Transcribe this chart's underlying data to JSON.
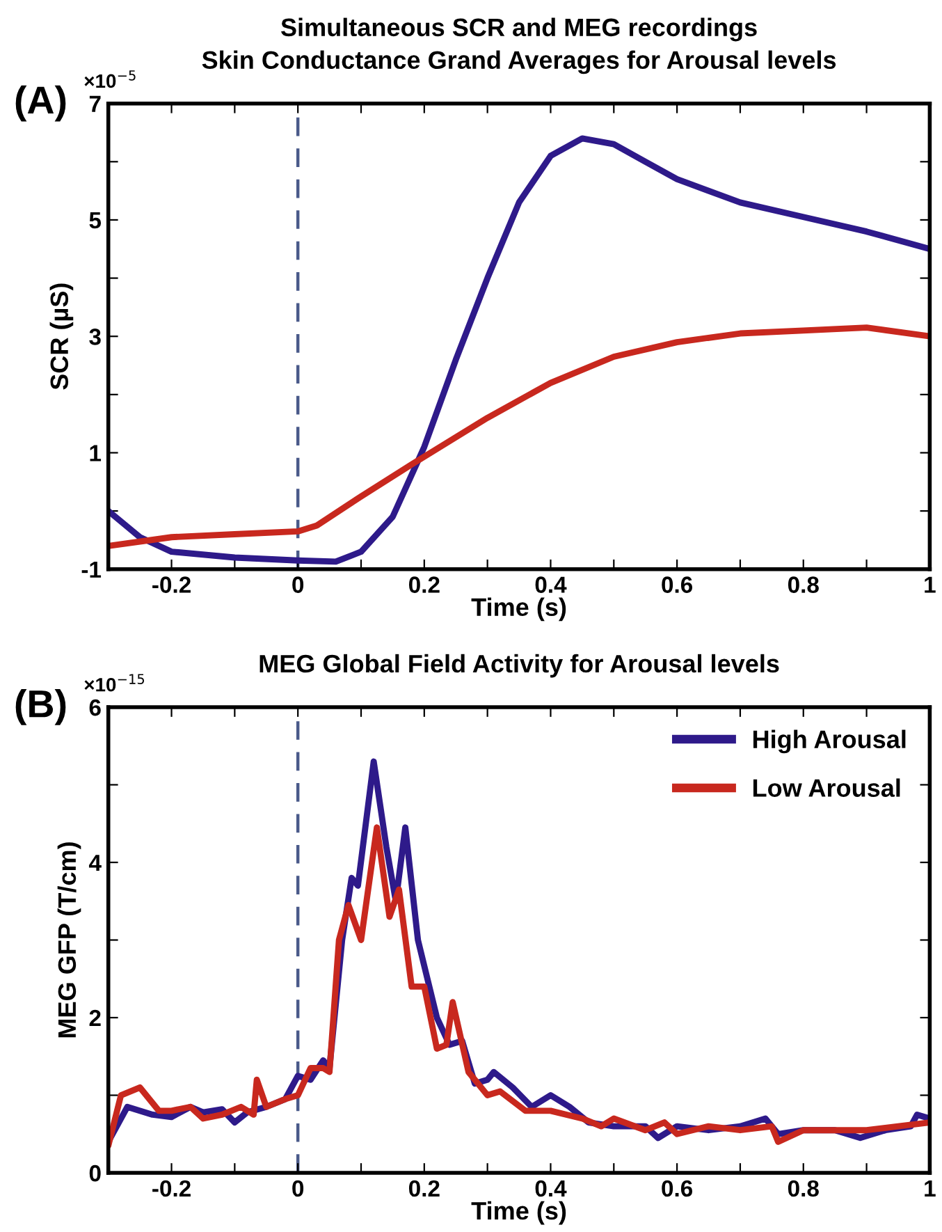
{
  "chart_data": [
    {
      "type": "line",
      "title": "Simultaneous SCR and MEG recordings",
      "subtitle": "Skin Conductance Grand Averages for Arousal levels",
      "xlabel": "Time (s)",
      "ylabel": "SCR (µS)",
      "annotations": [
        "(A)",
        "×10$^{−5}$"
      ],
      "xlim": [
        -0.3,
        1
      ],
      "ylim": [
        -1,
        7
      ],
      "xticks": [
        -0.2,
        {
          "value": -0.1,
          "label": null
        },
        0,
        {
          "value": 0.1,
          "label": null
        },
        0.2,
        {
          "value": 0.3,
          "label": null
        },
        0.4,
        {
          "value": 0.5,
          "label": null
        },
        0.6,
        {
          "value": 0.7,
          "label": null
        },
        0.8,
        {
          "value": 0.9,
          "label": null
        },
        1
      ],
      "yticks": [
        -1,
        {
          "value": 0,
          "label": null
        },
        1,
        {
          "value": 2,
          "label": null
        },
        3,
        {
          "value": 4,
          "label": null
        },
        5,
        {
          "value": 6,
          "label": null
        },
        7
      ],
      "grid": false,
      "legend": false,
      "line_style": "solid",
      "marker": "none",
      "ref_lines": [
        {
          "axis": "x",
          "value": 0,
          "color": "#4a5a8a",
          "line_style": "dashed"
        }
      ],
      "series": [
        {
          "color": "#2e1a8a",
          "x": [
            -0.3,
            -0.25,
            -0.2,
            -0.1,
            0,
            0.06,
            0.1,
            0.15,
            0.2,
            0.25,
            0.3,
            0.35,
            0.4,
            0.45,
            0.5,
            0.55,
            0.6,
            0.7,
            0.8,
            0.9,
            1.0
          ],
          "values": [
            0.0,
            -0.45,
            -0.7,
            -0.8,
            -0.85,
            -0.87,
            -0.7,
            -0.1,
            1.1,
            2.6,
            4.0,
            5.3,
            6.1,
            6.4,
            6.3,
            6.0,
            5.7,
            5.3,
            5.05,
            4.8,
            4.5
          ]
        },
        {
          "color": "#c8281e",
          "x": [
            -0.3,
            -0.2,
            -0.1,
            0,
            0.03,
            0.1,
            0.18,
            0.3,
            0.4,
            0.5,
            0.6,
            0.7,
            0.8,
            0.9,
            1.0
          ],
          "values": [
            -0.6,
            -0.45,
            -0.4,
            -0.35,
            -0.25,
            0.25,
            0.8,
            1.6,
            2.2,
            2.65,
            2.9,
            3.05,
            3.1,
            3.15,
            3.0
          ]
        }
      ]
    },
    {
      "type": "line",
      "title": "MEG Global Field Activity for Arousal levels",
      "xlabel": "Time (s)",
      "ylabel": "MEG GFP (T/cm)",
      "annotations": [
        "(B)",
        "×10$^{−15}$"
      ],
      "xlim": [
        -0.3,
        1
      ],
      "ylim": [
        0,
        6
      ],
      "xticks": [
        -0.2,
        {
          "value": -0.1,
          "label": null
        },
        0,
        {
          "value": 0.1,
          "label": null
        },
        0.2,
        {
          "value": 0.3,
          "label": null
        },
        0.4,
        {
          "value": 0.5,
          "label": null
        },
        0.6,
        {
          "value": 0.7,
          "label": null
        },
        0.8,
        {
          "value": 0.9,
          "label": null
        },
        1
      ],
      "yticks": [
        0,
        {
          "value": 1,
          "label": null
        },
        2,
        {
          "value": 3,
          "label": null
        },
        4,
        {
          "value": 5,
          "label": null
        },
        6
      ],
      "grid": false,
      "legend": "top right",
      "line_style": "solid",
      "marker": "none",
      "ref_lines": [
        {
          "axis": "x",
          "value": 0,
          "color": "#4a5a8a",
          "line_style": "dashed"
        }
      ],
      "series": [
        {
          "name": "High Arousal",
          "color": "#2e1a8a",
          "x": [
            -0.3,
            -0.27,
            -0.23,
            -0.2,
            -0.17,
            -0.15,
            -0.12,
            -0.1,
            -0.08,
            -0.05,
            -0.02,
            0,
            0.02,
            0.04,
            0.05,
            0.07,
            0.085,
            0.095,
            0.12,
            0.14,
            0.155,
            0.17,
            0.19,
            0.22,
            0.24,
            0.26,
            0.28,
            0.3,
            0.31,
            0.34,
            0.37,
            0.4,
            0.43,
            0.46,
            0.5,
            0.55,
            0.57,
            0.6,
            0.65,
            0.7,
            0.74,
            0.76,
            0.8,
            0.85,
            0.89,
            0.93,
            0.97,
            0.98,
            1.0
          ],
          "values": [
            0.4,
            0.85,
            0.75,
            0.72,
            0.85,
            0.78,
            0.82,
            0.65,
            0.78,
            0.85,
            0.95,
            1.25,
            1.2,
            1.45,
            1.35,
            3.0,
            3.8,
            3.7,
            5.3,
            4.2,
            3.5,
            4.45,
            3.0,
            2.0,
            1.65,
            1.7,
            1.15,
            1.2,
            1.3,
            1.1,
            0.85,
            1.0,
            0.85,
            0.65,
            0.6,
            0.6,
            0.45,
            0.6,
            0.55,
            0.6,
            0.7,
            0.5,
            0.55,
            0.55,
            0.45,
            0.55,
            0.6,
            0.75,
            0.7
          ]
        },
        {
          "name": "Low Arousal",
          "color": "#c8281e",
          "x": [
            -0.3,
            -0.28,
            -0.25,
            -0.22,
            -0.2,
            -0.17,
            -0.15,
            -0.12,
            -0.09,
            -0.07,
            -0.065,
            -0.05,
            -0.02,
            0,
            0.02,
            0.04,
            0.05,
            0.065,
            0.08,
            0.1,
            0.125,
            0.145,
            0.16,
            0.18,
            0.2,
            0.22,
            0.235,
            0.245,
            0.27,
            0.3,
            0.32,
            0.36,
            0.4,
            0.45,
            0.48,
            0.5,
            0.55,
            0.58,
            0.6,
            0.65,
            0.7,
            0.75,
            0.76,
            0.8,
            0.85,
            0.9,
            0.95,
            1.0
          ],
          "values": [
            0.35,
            1.0,
            1.1,
            0.8,
            0.8,
            0.85,
            0.7,
            0.75,
            0.85,
            0.75,
            1.2,
            0.85,
            0.95,
            1.0,
            1.35,
            1.35,
            1.3,
            3.0,
            3.45,
            3.0,
            4.45,
            3.3,
            3.65,
            2.4,
            2.4,
            1.6,
            1.65,
            2.2,
            1.3,
            1.0,
            1.05,
            0.8,
            0.8,
            0.7,
            0.6,
            0.7,
            0.55,
            0.65,
            0.5,
            0.6,
            0.55,
            0.6,
            0.4,
            0.55,
            0.55,
            0.55,
            0.6,
            0.65
          ]
        }
      ]
    }
  ]
}
